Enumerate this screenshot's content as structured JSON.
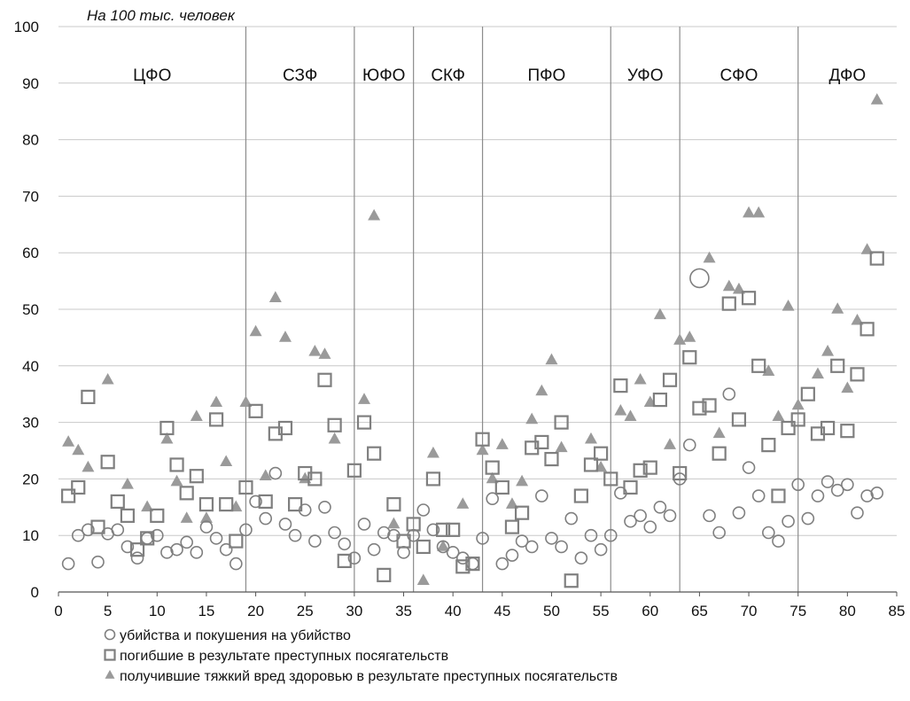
{
  "chart_data": {
    "type": "scatter",
    "unit_label": "На 100 тыс. человек",
    "xlim": [
      0,
      85
    ],
    "ylim": [
      0,
      100
    ],
    "xticks": [
      0,
      5,
      10,
      15,
      20,
      25,
      30,
      35,
      40,
      45,
      50,
      55,
      60,
      65,
      70,
      75,
      80,
      85
    ],
    "yticks": [
      0,
      10,
      20,
      30,
      40,
      50,
      60,
      70,
      80,
      90,
      100
    ],
    "grid": "horizontal",
    "legend_position": "bottom-left",
    "regions": [
      {
        "label": "ЦФО",
        "start": 0,
        "end": 19
      },
      {
        "label": "СЗФ",
        "start": 19,
        "end": 30
      },
      {
        "label": "ЮФО",
        "start": 30,
        "end": 36
      },
      {
        "label": "СКФ",
        "start": 36,
        "end": 43
      },
      {
        "label": "ПФО",
        "start": 43,
        "end": 56
      },
      {
        "label": "УФО",
        "start": 56,
        "end": 63
      },
      {
        "label": "СФО",
        "start": 63,
        "end": 75
      },
      {
        "label": "ДФО",
        "start": 75,
        "end": 85
      }
    ],
    "region_boundaries": [
      19,
      30,
      36,
      43,
      56,
      63,
      75
    ],
    "series": [
      {
        "name": "убийства и покушения на убийство",
        "marker": "circle",
        "color": "#7f7f7f",
        "x": [
          1,
          2,
          3,
          4,
          5,
          6,
          7,
          8,
          9,
          10,
          11,
          12,
          13,
          14,
          15,
          16,
          17,
          18,
          19,
          20,
          21,
          22,
          23,
          24,
          25,
          26,
          27,
          28,
          29,
          30,
          31,
          32,
          33,
          34,
          35,
          36,
          37,
          38,
          39,
          40,
          41,
          42,
          43,
          44,
          45,
          46,
          47,
          48,
          49,
          50,
          51,
          52,
          53,
          54,
          55,
          56,
          57,
          58,
          59,
          60,
          61,
          62,
          63,
          64,
          65,
          66,
          67,
          68,
          69,
          70,
          71,
          72,
          73,
          74,
          75,
          76,
          77,
          78,
          79,
          80,
          81,
          82,
          83
        ],
        "values": [
          5,
          10,
          11,
          5.3,
          10.3,
          11,
          8,
          6,
          9.5,
          10,
          7,
          7.5,
          8.8,
          7,
          11.5,
          9.5,
          7.5,
          5,
          11,
          16,
          13,
          21,
          12,
          10,
          14.5,
          9,
          15,
          10.5,
          8.5,
          6,
          12,
          7.5,
          10.5,
          10,
          7,
          10,
          14.5,
          11,
          8,
          7,
          6,
          5,
          9.5,
          16.5,
          5,
          6.5,
          9,
          8,
          17,
          9.5,
          8,
          13,
          6,
          10,
          7.5,
          10,
          17.5,
          12.5,
          13.5,
          11.5,
          15,
          13.5,
          20,
          26,
          55.5,
          13.5,
          10.5,
          35,
          14,
          22,
          17,
          10.5,
          9,
          12.5,
          19,
          13,
          17,
          19.5,
          18,
          19,
          14,
          17,
          17.5
        ],
        "large_marker_index": 64
      },
      {
        "name": "погибшие в результате преступных посягательств",
        "marker": "square",
        "color": "#7f7f7f",
        "x": [
          1,
          2,
          3,
          4,
          5,
          6,
          7,
          8,
          9,
          10,
          11,
          12,
          13,
          14,
          15,
          16,
          17,
          18,
          19,
          20,
          21,
          22,
          23,
          24,
          25,
          26,
          27,
          28,
          29,
          30,
          31,
          32,
          33,
          34,
          35,
          36,
          37,
          38,
          39,
          40,
          41,
          42,
          43,
          44,
          45,
          46,
          47,
          48,
          49,
          50,
          51,
          52,
          53,
          54,
          55,
          56,
          57,
          58,
          59,
          60,
          61,
          62,
          63,
          64,
          65,
          66,
          67,
          68,
          69,
          70,
          71,
          72,
          73,
          74,
          75,
          76,
          77,
          78,
          79,
          80,
          81,
          82,
          83
        ],
        "values": [
          17,
          18.5,
          34.5,
          11.5,
          23,
          16,
          13.5,
          7.5,
          9.5,
          13.5,
          29,
          22.5,
          17.5,
          20.5,
          15.5,
          30.5,
          15.5,
          9,
          18.5,
          32,
          16,
          28,
          29,
          15.5,
          21,
          20,
          37.5,
          29.5,
          5.5,
          21.5,
          30,
          24.5,
          3,
          15.5,
          9,
          12,
          8,
          20,
          11,
          11,
          4.5,
          5,
          27,
          22,
          18.5,
          11.5,
          14,
          25.5,
          26.5,
          23.5,
          30,
          2,
          17,
          22.5,
          24.5,
          20,
          36.5,
          18.5,
          21.5,
          22,
          34,
          37.5,
          21,
          41.5,
          32.5,
          33,
          24.5,
          51,
          30.5,
          52,
          40,
          26,
          17,
          29,
          30.5,
          35,
          28,
          29,
          40,
          28.5,
          38.5,
          46.5,
          59
        ]
      },
      {
        "name": "получившие тяжкий вред здоровью в результате преступных посягательств",
        "marker": "triangle",
        "color": "#9a9a9a",
        "x": [
          1,
          2,
          3,
          5,
          7,
          9,
          11,
          12,
          13,
          14,
          15,
          16,
          17,
          18,
          19,
          20,
          21,
          22,
          23,
          25,
          26,
          27,
          28,
          31,
          32,
          34,
          37,
          38,
          39,
          41,
          43,
          44,
          45,
          46,
          47,
          48,
          49,
          50,
          51,
          54,
          55,
          57,
          58,
          59,
          60,
          61,
          62,
          63,
          64,
          66,
          67,
          68,
          69,
          70,
          71,
          72,
          73,
          74,
          75,
          77,
          78,
          79,
          80,
          81,
          82,
          83
        ],
        "values": [
          26.5,
          25,
          22,
          37.5,
          19,
          15,
          27,
          19.5,
          13,
          31,
          13,
          33.5,
          23,
          15,
          33.5,
          46,
          20.5,
          52,
          45,
          20,
          42.5,
          42,
          27,
          34,
          66.5,
          12,
          2,
          24.5,
          8,
          15.5,
          25,
          20,
          26,
          15.5,
          19.5,
          30.5,
          35.5,
          41,
          25.5,
          27,
          22,
          32,
          31,
          37.5,
          33.5,
          49,
          26,
          44.5,
          45,
          59,
          28,
          54,
          53.5,
          67,
          67,
          39,
          31,
          50.5,
          33,
          38.5,
          42.5,
          50,
          36,
          48,
          60.5,
          87
        ]
      }
    ]
  }
}
